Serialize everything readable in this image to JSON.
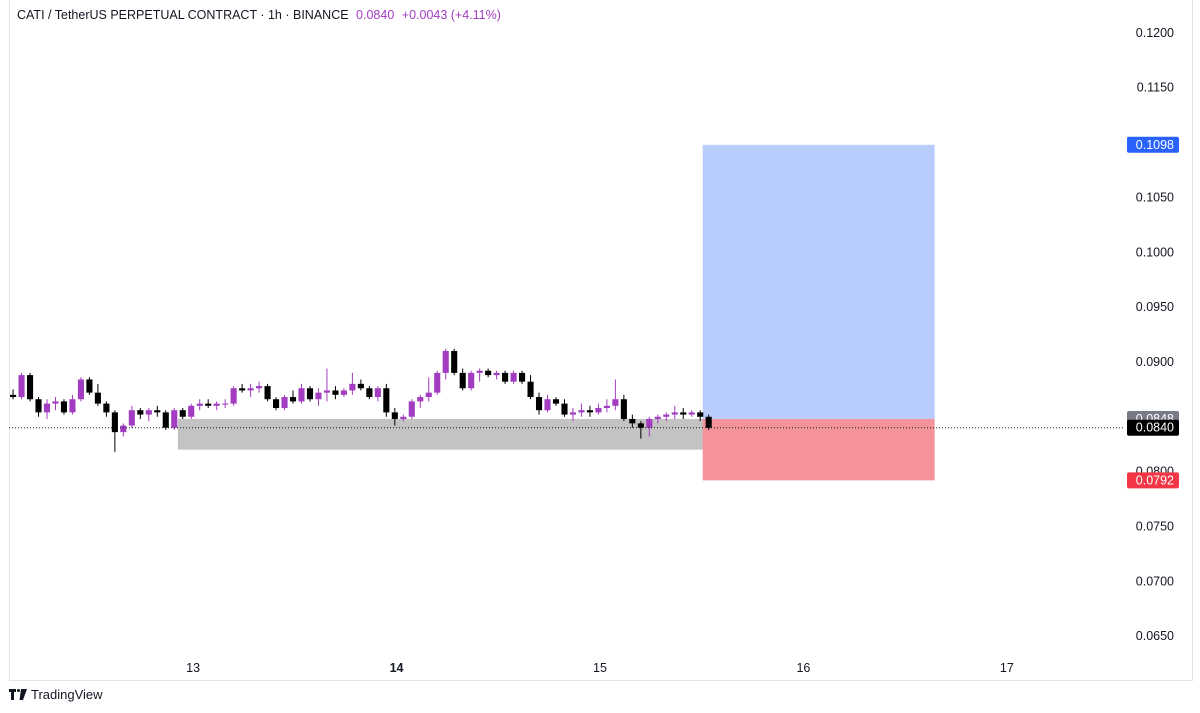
{
  "header": {
    "symbol": "CATI / TetherUS PERPETUAL CONTRACT · 1h · BINANCE",
    "last": "0.0840",
    "change": "+0.0043 (+4.11%)"
  },
  "branding": {
    "name": "TradingView",
    "logo_icon": "tradingview-logo-icon"
  },
  "colors": {
    "up": "#a23dc1",
    "down": "#000000",
    "target": "#b9cdfc",
    "stop": "#f4949a",
    "zone": "#bdbdbd",
    "target_tag": "#2962ff",
    "stop_tag": "#f23645",
    "last_tag": "#000000",
    "prev_tag": "#787b86"
  },
  "chart_data": {
    "type": "candlestick",
    "interval": "1h",
    "ylim": [
      0.061,
      0.123
    ],
    "y_ticks": [
      "0.1200",
      "0.1150",
      "0.1050",
      "0.1000",
      "0.0950",
      "0.0900",
      "0.0800",
      "0.0750",
      "0.0700",
      "0.0650"
    ],
    "x_ticks": [
      {
        "label": "13",
        "x": 12.625,
        "bold": false
      },
      {
        "label": "14",
        "x": 13.625,
        "bold": true
      },
      {
        "label": "15",
        "x": 14.625,
        "bold": false
      },
      {
        "label": "16",
        "x": 15.625,
        "bold": false
      },
      {
        "label": "17",
        "x": 16.625,
        "bold": false
      }
    ],
    "xlim": [
      11.72,
      17.54
    ],
    "candle_start_x": 11.74,
    "candle_step": 0.0417,
    "candles": [
      [
        0.087,
        0.0875,
        0.0866,
        0.0868
      ],
      [
        0.0868,
        0.089,
        0.0866,
        0.0888
      ],
      [
        0.0888,
        0.089,
        0.0864,
        0.0866
      ],
      [
        0.0866,
        0.0868,
        0.085,
        0.0854
      ],
      [
        0.0854,
        0.0866,
        0.0848,
        0.0862
      ],
      [
        0.0862,
        0.0868,
        0.0856,
        0.0864
      ],
      [
        0.0864,
        0.0866,
        0.0852,
        0.0854
      ],
      [
        0.0854,
        0.087,
        0.0852,
        0.0866
      ],
      [
        0.0866,
        0.0886,
        0.0864,
        0.0884
      ],
      [
        0.0884,
        0.0886,
        0.087,
        0.0872
      ],
      [
        0.0872,
        0.088,
        0.086,
        0.0862
      ],
      [
        0.0862,
        0.0864,
        0.085,
        0.0854
      ],
      [
        0.0854,
        0.0856,
        0.0818,
        0.0836
      ],
      [
        0.0836,
        0.0844,
        0.0832,
        0.0842
      ],
      [
        0.0842,
        0.086,
        0.084,
        0.0856
      ],
      [
        0.0856,
        0.0858,
        0.0848,
        0.0852
      ],
      [
        0.0852,
        0.0858,
        0.0846,
        0.0856
      ],
      [
        0.0856,
        0.086,
        0.085,
        0.0854
      ],
      [
        0.0854,
        0.0856,
        0.0838,
        0.084
      ],
      [
        0.084,
        0.0858,
        0.0838,
        0.0856
      ],
      [
        0.0856,
        0.0858,
        0.0848,
        0.085
      ],
      [
        0.085,
        0.0862,
        0.0848,
        0.086
      ],
      [
        0.086,
        0.0866,
        0.0856,
        0.0862
      ],
      [
        0.0862,
        0.0866,
        0.0858,
        0.086
      ],
      [
        0.086,
        0.0864,
        0.0856,
        0.0862
      ],
      [
        0.0862,
        0.0866,
        0.0858,
        0.0862
      ],
      [
        0.0862,
        0.0878,
        0.086,
        0.0876
      ],
      [
        0.0876,
        0.088,
        0.0872,
        0.0874
      ],
      [
        0.0874,
        0.088,
        0.0868,
        0.0876
      ],
      [
        0.0876,
        0.0882,
        0.0872,
        0.0878
      ],
      [
        0.0878,
        0.088,
        0.0864,
        0.0866
      ],
      [
        0.0866,
        0.0868,
        0.0856,
        0.0858
      ],
      [
        0.0858,
        0.087,
        0.0856,
        0.0868
      ],
      [
        0.0868,
        0.0874,
        0.0862,
        0.0864
      ],
      [
        0.0864,
        0.088,
        0.0862,
        0.0876
      ],
      [
        0.0876,
        0.0878,
        0.0864,
        0.0866
      ],
      [
        0.0866,
        0.0876,
        0.086,
        0.0872
      ],
      [
        0.0872,
        0.0894,
        0.0864,
        0.0874
      ],
      [
        0.0874,
        0.0878,
        0.0866,
        0.087
      ],
      [
        0.087,
        0.0876,
        0.0868,
        0.0874
      ],
      [
        0.0874,
        0.089,
        0.087,
        0.088
      ],
      [
        0.088,
        0.0884,
        0.0874,
        0.0876
      ],
      [
        0.0876,
        0.0878,
        0.0866,
        0.0868
      ],
      [
        0.0868,
        0.0878,
        0.0864,
        0.0876
      ],
      [
        0.0876,
        0.088,
        0.085,
        0.0854
      ],
      [
        0.0854,
        0.0858,
        0.0842,
        0.0848
      ],
      [
        0.0848,
        0.0852,
        0.0846,
        0.085
      ],
      [
        0.085,
        0.0866,
        0.0848,
        0.0864
      ],
      [
        0.0864,
        0.087,
        0.0858,
        0.0868
      ],
      [
        0.0868,
        0.0886,
        0.0864,
        0.0872
      ],
      [
        0.0872,
        0.0892,
        0.087,
        0.089
      ],
      [
        0.089,
        0.0912,
        0.0884,
        0.091
      ],
      [
        0.091,
        0.0912,
        0.0888,
        0.089
      ],
      [
        0.089,
        0.0894,
        0.0874,
        0.0876
      ],
      [
        0.0876,
        0.0892,
        0.0874,
        0.089
      ],
      [
        0.089,
        0.0894,
        0.0882,
        0.0892
      ],
      [
        0.0892,
        0.0894,
        0.0886,
        0.0888
      ],
      [
        0.0888,
        0.0892,
        0.0884,
        0.089
      ],
      [
        0.089,
        0.0892,
        0.088,
        0.0882
      ],
      [
        0.0882,
        0.0892,
        0.088,
        0.089
      ],
      [
        0.089,
        0.0892,
        0.088,
        0.0882
      ],
      [
        0.0882,
        0.0888,
        0.0866,
        0.0868
      ],
      [
        0.0868,
        0.0872,
        0.0852,
        0.0856
      ],
      [
        0.0856,
        0.087,
        0.0854,
        0.0866
      ],
      [
        0.0866,
        0.0868,
        0.086,
        0.0862
      ],
      [
        0.0862,
        0.0866,
        0.085,
        0.0852
      ],
      [
        0.0852,
        0.0858,
        0.0846,
        0.0854
      ],
      [
        0.0854,
        0.0862,
        0.085,
        0.0856
      ],
      [
        0.0856,
        0.086,
        0.085,
        0.0854
      ],
      [
        0.0854,
        0.0862,
        0.0852,
        0.0858
      ],
      [
        0.0858,
        0.0866,
        0.0854,
        0.086
      ],
      [
        0.086,
        0.0884,
        0.0856,
        0.0866
      ],
      [
        0.0866,
        0.087,
        0.0846,
        0.0848
      ],
      [
        0.0848,
        0.0852,
        0.084,
        0.0844
      ],
      [
        0.0844,
        0.0846,
        0.083,
        0.084
      ],
      [
        0.084,
        0.085,
        0.0832,
        0.0848
      ],
      [
        0.0848,
        0.0852,
        0.0844,
        0.085
      ],
      [
        0.085,
        0.0854,
        0.0846,
        0.0852
      ],
      [
        0.0852,
        0.086,
        0.0848,
        0.0854
      ],
      [
        0.0854,
        0.0858,
        0.0848,
        0.0852
      ],
      [
        0.0852,
        0.0856,
        0.085,
        0.0854
      ],
      [
        0.0854,
        0.0856,
        0.0846,
        0.085
      ],
      [
        0.085,
        0.0852,
        0.0838,
        0.084
      ]
    ],
    "zone": {
      "x0": 12.55,
      "x1": 15.42,
      "y0": 0.082,
      "y1": 0.0848
    },
    "position": {
      "x0": 15.13,
      "x1": 16.27,
      "entry": 0.0848,
      "target": 0.1098,
      "stop": 0.0792
    },
    "last_price": 0.084,
    "price_tags": [
      {
        "value": 0.1098,
        "label": "0.1098",
        "kind": "target_tag"
      },
      {
        "value": 0.0848,
        "label": "0.0848",
        "kind": "prev_tag"
      },
      {
        "value": 0.084,
        "label": "0.0840",
        "kind": "last_tag"
      },
      {
        "value": 0.0792,
        "label": "0.0792",
        "kind": "stop_tag"
      }
    ]
  }
}
